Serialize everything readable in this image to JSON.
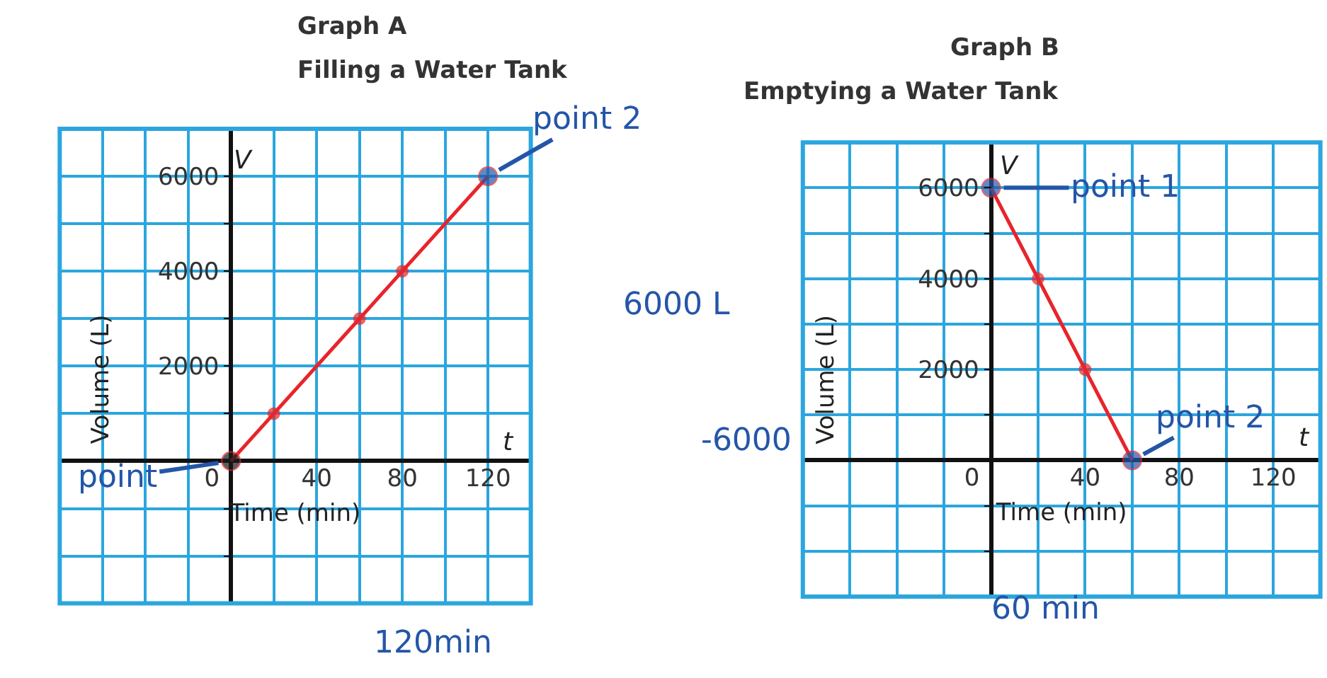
{
  "chart_data": [
    {
      "type": "line",
      "title": "Graph A",
      "subtitle": "Filling a Water Tank",
      "xlabel": "Time (min)",
      "ylabel": "Volume (L)",
      "x": [
        0,
        20,
        60,
        80,
        120
      ],
      "series": [
        {
          "color": "#e8242b",
          "colors": [
            "#1a1a1a",
            "#e8242b",
            "#e8242b",
            "#e8242b",
            "#2456a8"
          ],
          "values": [
            0,
            1000,
            3000,
            4000,
            6000
          ]
        }
      ],
      "xlim": [
        -80,
        140
      ],
      "ylim": [
        -3000,
        7000
      ],
      "xticks": [
        {
          "value": -60,
          "label": null
        },
        {
          "value": -40,
          "label": null
        },
        {
          "value": -20,
          "label": null
        },
        0,
        {
          "value": 20,
          "label": null
        },
        40,
        {
          "value": 60,
          "label": null
        },
        80,
        {
          "value": 100,
          "label": null
        },
        120
      ],
      "yticks": [
        {
          "value": -2000,
          "label": null
        },
        {
          "value": -1000,
          "label": null
        },
        {
          "value": 1000,
          "label": null
        },
        2000,
        {
          "value": 3000,
          "label": null
        },
        4000,
        {
          "value": 5000,
          "label": null
        },
        6000
      ],
      "grid": true,
      "marker": "circle",
      "line_style": "solid",
      "annotations": [
        "V",
        "t",
        {
          "text": "point 2",
          "x": 120,
          "y": 6000
        },
        {
          "text": "point",
          "x": 0,
          "y": 0
        },
        "6000 L",
        "120min"
      ]
    },
    {
      "type": "line",
      "title": "Graph B",
      "subtitle": "Emptying a Water Tank",
      "xlabel": "Time (min)",
      "ylabel": "Volume (L)",
      "x": [
        0,
        20,
        40,
        60
      ],
      "series": [
        {
          "color": "#e8242b",
          "colors": [
            "#2456a8",
            "#e8242b",
            "#e8242b",
            "#2456a8"
          ],
          "values": [
            6000,
            4000,
            2000,
            0
          ]
        }
      ],
      "xlim": [
        -80,
        140
      ],
      "ylim": [
        -3000,
        7000
      ],
      "xticks": [
        {
          "value": -60,
          "label": null
        },
        {
          "value": -40,
          "label": null
        },
        {
          "value": -20,
          "label": null
        },
        0,
        {
          "value": 20,
          "label": null
        },
        40,
        {
          "value": 60,
          "label": null
        },
        80,
        {
          "value": 100,
          "label": null
        },
        120
      ],
      "yticks": [
        {
          "value": -2000,
          "label": null
        },
        {
          "value": -1000,
          "label": null
        },
        {
          "value": 1000,
          "label": null
        },
        2000,
        {
          "value": 3000,
          "label": null
        },
        4000,
        {
          "value": 5000,
          "label": null
        },
        6000
      ],
      "grid": true,
      "marker": "circle",
      "line_style": "solid",
      "annotations": [
        "V",
        "t",
        {
          "text": "point 1",
          "x": 0,
          "y": 6000
        },
        {
          "text": "point 2",
          "x": 60,
          "y": 0
        },
        "-6000",
        "60 min"
      ]
    }
  ]
}
